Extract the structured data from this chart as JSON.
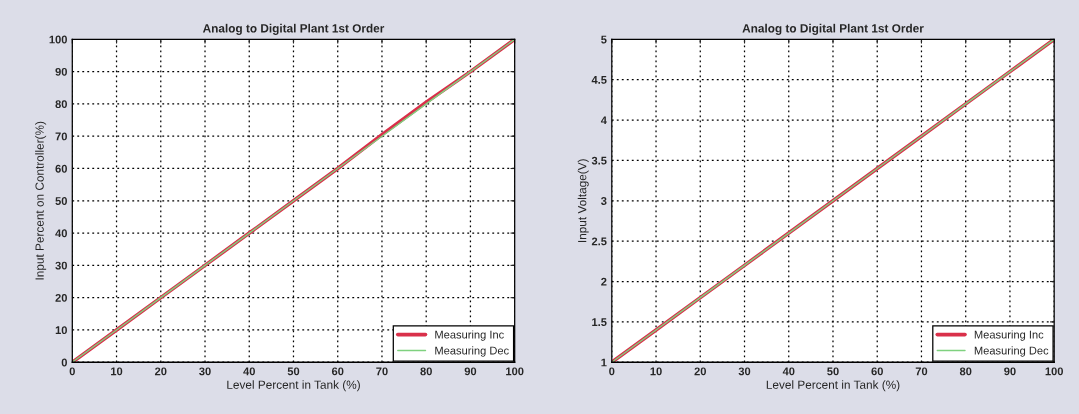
{
  "chart_data": [
    {
      "type": "line",
      "title": "Analog to Digital Plant 1st Order",
      "xlabel": "Level Percent in Tank (%)",
      "ylabel": "Input Percent on Controller(%)",
      "x": [
        0,
        10,
        20,
        30,
        40,
        50,
        60,
        70,
        80,
        90,
        100
      ],
      "series": [
        {
          "name": "Measuring Inc",
          "color": "#d9304a",
          "values": [
            0,
            10,
            20,
            30,
            40,
            50,
            60,
            70.5,
            80.5,
            90,
            100
          ]
        },
        {
          "name": "Measuring Dec",
          "color": "#7fd17f",
          "values": [
            0,
            10,
            20,
            30,
            40,
            50,
            60,
            70,
            80,
            90,
            100
          ]
        }
      ],
      "xlim": [
        0,
        100
      ],
      "xticks": [
        0,
        10,
        20,
        30,
        40,
        50,
        60,
        70,
        80,
        90,
        100
      ],
      "ylim": [
        0,
        100
      ],
      "yticks": [
        0,
        10,
        20,
        30,
        40,
        50,
        60,
        70,
        80,
        90,
        100
      ],
      "grid": true,
      "legend": "bottom right",
      "marker": "none",
      "line_style": "solid"
    },
    {
      "type": "line",
      "title": "Analog to Digital Plant 1st Order",
      "xlabel": "Level Percent in Tank (%)",
      "ylabel": "Input Voltage(V)",
      "x": [
        0,
        10,
        20,
        30,
        40,
        50,
        60,
        70,
        80,
        90,
        100
      ],
      "series": [
        {
          "name": "Measuring Inc",
          "color": "#d9304a",
          "values": [
            1,
            1.4,
            1.8,
            2.2,
            2.6,
            3,
            3.4,
            3.8,
            4.2,
            4.6,
            5
          ]
        },
        {
          "name": "Measuring Dec",
          "color": "#7fd17f",
          "values": [
            1,
            1.4,
            1.8,
            2.2,
            2.6,
            3,
            3.4,
            3.8,
            4.2,
            4.6,
            5
          ]
        }
      ],
      "xlim": [
        0,
        100
      ],
      "xticks": [
        0,
        10,
        20,
        30,
        40,
        50,
        60,
        70,
        80,
        90,
        100
      ],
      "ylim": [
        1,
        5
      ],
      "yticks": [
        1,
        1.5,
        2,
        2.5,
        3,
        3.5,
        4,
        4.5,
        5
      ],
      "grid": true,
      "legend": "bottom right",
      "marker": "none",
      "line_style": "solid"
    }
  ]
}
